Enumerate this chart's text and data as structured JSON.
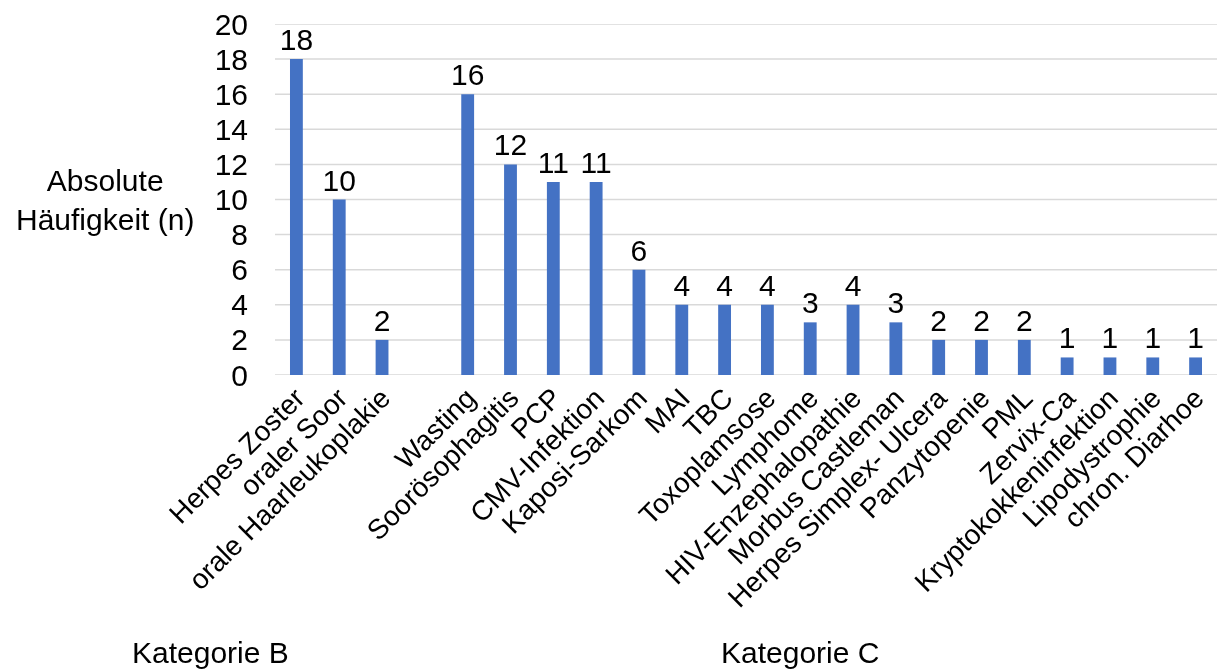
{
  "chart_data": {
    "type": "bar",
    "ylabel": "Absolute Häufigkeit (n)",
    "categories": [
      "Herpes Zoster",
      "oraler Soor",
      "orale Haarleukoplakie",
      null,
      "Wasting",
      "Soorösophagitis",
      "PCP",
      "CMV-Infektion",
      "Kaposi-Sarkom",
      "MAI",
      "TBC",
      "Toxoplamsose",
      "Lymphome",
      "HIV-Enzephalopathie",
      "Morbus Castleman",
      "Herpes Simplex- Ulcera",
      "Panzytopenie",
      "PML",
      "Zervix-Ca",
      "Kryptokokkeninfektion",
      "Lipodystrophie",
      "chron. Diarhoe"
    ],
    "values": [
      18,
      10,
      2,
      null,
      16,
      12,
      11,
      11,
      6,
      4,
      4,
      4,
      3,
      4,
      3,
      2,
      2,
      2,
      1,
      1,
      1,
      1
    ],
    "color": "#4472c4",
    "ylim": [
      0,
      20
    ],
    "yticks": [
      0,
      2,
      4,
      6,
      8,
      10,
      12,
      14,
      16,
      18,
      20
    ],
    "grid": "y",
    "data_labels": true,
    "annotations": [
      "Kategorie B",
      "Kategorie C"
    ]
  }
}
